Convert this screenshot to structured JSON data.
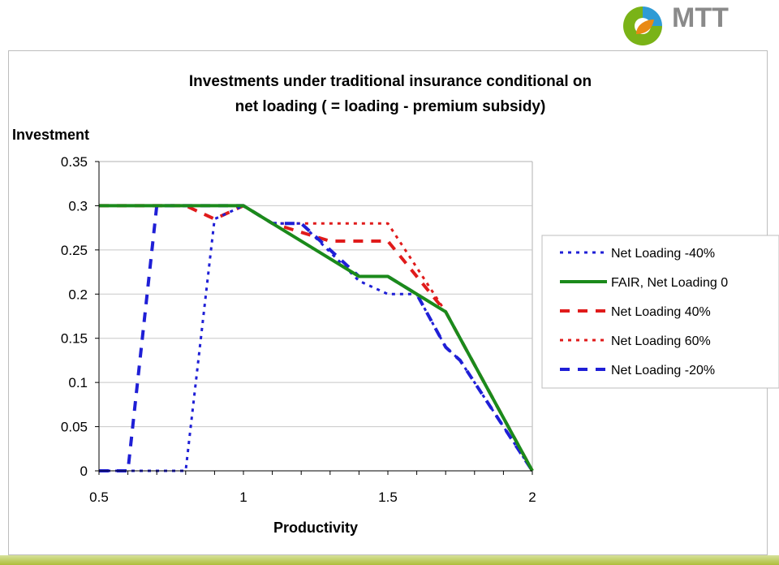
{
  "logo": {
    "text": "MTT"
  },
  "chart_data": {
    "type": "line",
    "title_lines": [
      "Investments under traditional insurance conditional on",
      "net loading ( = loading - premium subsidy)"
    ],
    "xlabel": "Productivity",
    "ylabel": "Investment",
    "xlim": [
      0.5,
      2
    ],
    "ylim": [
      0,
      0.35
    ],
    "x_ticks": [
      "0.5",
      "1",
      "1.5",
      "2"
    ],
    "y_ticks": [
      "0",
      "0.05",
      "0.1",
      "0.15",
      "0.2",
      "0.25",
      "0.3",
      "0.35"
    ],
    "grid": "horizontal",
    "legend_position": "right",
    "series": [
      {
        "name": "Net Loading -40%",
        "color": "#1f1fd6",
        "style": "dotted",
        "points": [
          [
            0.5,
            0
          ],
          [
            0.6,
            0
          ],
          [
            0.8,
            0
          ],
          [
            0.9,
            0.285
          ],
          [
            1.0,
            0.3
          ],
          [
            1.1,
            0.28
          ],
          [
            1.2,
            0.28
          ],
          [
            1.4,
            0.215
          ],
          [
            1.5,
            0.2
          ],
          [
            1.6,
            0.2
          ],
          [
            1.7,
            0.14
          ],
          [
            1.75,
            0.125
          ],
          [
            2.0,
            0
          ]
        ]
      },
      {
        "name": "FAIR, Net Loading 0",
        "color": "#1b8a1b",
        "style": "solid",
        "points": [
          [
            0.5,
            0.3
          ],
          [
            1.0,
            0.3
          ],
          [
            1.4,
            0.22
          ],
          [
            1.5,
            0.22
          ],
          [
            1.7,
            0.18
          ],
          [
            2.0,
            0
          ]
        ]
      },
      {
        "name": "Net Loading 40%",
        "color": "#e01b1b",
        "style": "dashed",
        "points": [
          [
            0.5,
            0.3
          ],
          [
            0.8,
            0.3
          ],
          [
            0.9,
            0.285
          ],
          [
            1.0,
            0.3
          ],
          [
            1.1,
            0.28
          ],
          [
            1.3,
            0.26
          ],
          [
            1.5,
            0.26
          ],
          [
            1.7,
            0.18
          ],
          [
            2.0,
            0
          ]
        ]
      },
      {
        "name": "Net Loading 60%",
        "color": "#e01b1b",
        "style": "dotted",
        "points": [
          [
            0.5,
            0.3
          ],
          [
            1.0,
            0.3
          ],
          [
            1.1,
            0.28
          ],
          [
            1.5,
            0.28
          ],
          [
            1.7,
            0.18
          ],
          [
            2.0,
            0
          ]
        ]
      },
      {
        "name": "Net Loading -20%",
        "color": "#1f1fd6",
        "style": "dashed",
        "points": [
          [
            0.5,
            0
          ],
          [
            0.6,
            0
          ],
          [
            0.7,
            0.3
          ],
          [
            1.0,
            0.3
          ],
          [
            1.1,
            0.28
          ],
          [
            1.2,
            0.28
          ],
          [
            1.4,
            0.22
          ],
          [
            1.5,
            0.22
          ],
          [
            1.6,
            0.2
          ],
          [
            1.7,
            0.14
          ],
          [
            1.75,
            0.125
          ],
          [
            2.0,
            0
          ]
        ]
      }
    ],
    "legend_order": [
      0,
      1,
      2,
      3,
      4
    ]
  }
}
